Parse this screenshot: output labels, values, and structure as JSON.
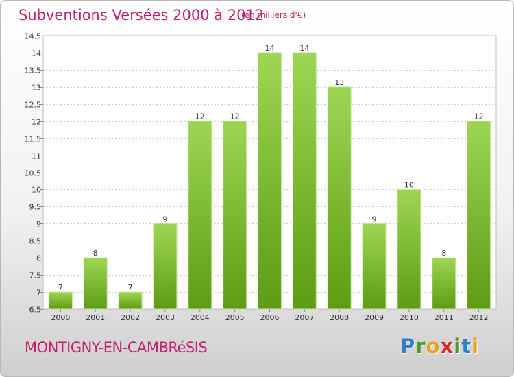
{
  "header": {
    "title": "Subventions Versées 2000 à 2012",
    "unit": "(en milliers d'€)"
  },
  "footer": {
    "commune": "MONTIGNY-EN-CAMBRéSIS",
    "logo_letters": [
      {
        "char": "P",
        "color": "#2e7fc4"
      },
      {
        "char": "r",
        "color": "#4a9a2a"
      },
      {
        "char": "o",
        "color": "#e8a21a"
      },
      {
        "char": "x",
        "color": "#d8282c"
      },
      {
        "char": "i",
        "color": "#4a9a2a"
      },
      {
        "char": "t",
        "color": "#2e7fc4"
      },
      {
        "char": "i",
        "color": "#e8a21a"
      }
    ]
  },
  "chart_data": {
    "type": "bar",
    "categories": [
      "2000",
      "2001",
      "2002",
      "2003",
      "2004",
      "2005",
      "2006",
      "2007",
      "2008",
      "2009",
      "2010",
      "2011",
      "2012"
    ],
    "values": [
      7,
      8,
      7,
      9,
      12,
      12,
      14,
      14,
      13,
      9,
      10,
      8,
      12
    ],
    "data_labels": [
      "7",
      "8",
      "7",
      "9",
      "12",
      "12",
      "14",
      "14",
      "13",
      "9",
      "10",
      "8",
      "12"
    ],
    "ylim": [
      6.5,
      14.5
    ],
    "yticks": [
      6.5,
      7,
      7.5,
      8,
      8.5,
      9,
      9.5,
      10,
      10.5,
      11,
      11.5,
      12,
      12.5,
      13,
      13.5,
      14,
      14.5
    ],
    "ytick_labels": [
      "6.5",
      "7",
      "7.5",
      "8",
      "8.5",
      "9",
      "9.5",
      "10",
      "10.5",
      "11",
      "11.5",
      "12",
      "12.5",
      "13",
      "13.5",
      "14",
      "14.5"
    ],
    "grid": true,
    "bar_color": "#7cc136",
    "bar_top_color": "#9dd653",
    "bar_bottom_color": "#5d9c14"
  }
}
